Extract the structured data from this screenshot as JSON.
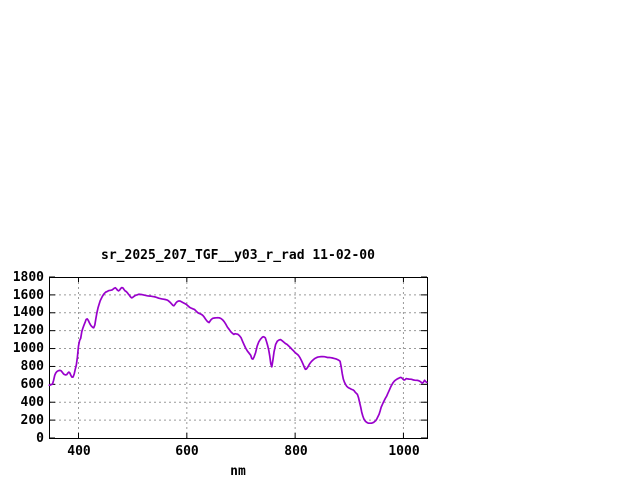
{
  "page": {
    "background": "#ffffff"
  },
  "chart_data": {
    "type": "line",
    "title": "sr_2025_207_TGF__y03_r_rad 11-02-00",
    "xlabel": "nm",
    "ylabel": "",
    "xlim": [
      345.5,
      1043.5
    ],
    "ylim": [
      0,
      1800
    ],
    "grid": true,
    "legend": "none",
    "line_color": "#9900cc",
    "grid_color": "#9a9a9a",
    "border_color": "#000000",
    "xticks": [
      400,
      600,
      800,
      1000
    ],
    "xtick_labels": [
      "400",
      "600",
      "800",
      "1000"
    ],
    "yticks": [
      0,
      200,
      400,
      600,
      800,
      1000,
      1200,
      1400,
      1600,
      1800
    ],
    "ytick_labels": [
      "0",
      "200",
      "400",
      "600",
      "800",
      "1000",
      "1200",
      "1400",
      "1600",
      "1800"
    ],
    "points": [
      [
        346,
        590
      ],
      [
        348,
        592
      ],
      [
        350,
        598
      ],
      [
        352,
        602
      ],
      [
        354,
        645
      ],
      [
        356,
        700
      ],
      [
        358,
        728
      ],
      [
        360,
        742
      ],
      [
        362,
        750
      ],
      [
        364,
        755
      ],
      [
        366,
        756
      ],
      [
        368,
        750
      ],
      [
        370,
        735
      ],
      [
        372,
        718
      ],
      [
        374,
        710
      ],
      [
        376,
        705
      ],
      [
        378,
        708
      ],
      [
        380,
        725
      ],
      [
        382,
        737
      ],
      [
        384,
        728
      ],
      [
        386,
        700
      ],
      [
        388,
        680
      ],
      [
        390,
        682
      ],
      [
        392,
        715
      ],
      [
        394,
        770
      ],
      [
        396,
        815
      ],
      [
        398,
        905
      ],
      [
        400,
        1030
      ],
      [
        402,
        1090
      ],
      [
        404,
        1115
      ],
      [
        406,
        1190
      ],
      [
        408,
        1225
      ],
      [
        410,
        1260
      ],
      [
        412,
        1290
      ],
      [
        414,
        1325
      ],
      [
        416,
        1332
      ],
      [
        418,
        1315
      ],
      [
        420,
        1290
      ],
      [
        422,
        1267
      ],
      [
        424,
        1250
      ],
      [
        426,
        1238
      ],
      [
        428,
        1232
      ],
      [
        430,
        1262
      ],
      [
        432,
        1330
      ],
      [
        434,
        1400
      ],
      [
        436,
        1455
      ],
      [
        438,
        1495
      ],
      [
        440,
        1535
      ],
      [
        442,
        1560
      ],
      [
        444,
        1582
      ],
      [
        446,
        1602
      ],
      [
        448,
        1618
      ],
      [
        450,
        1630
      ],
      [
        452,
        1636
      ],
      [
        454,
        1642
      ],
      [
        456,
        1648
      ],
      [
        458,
        1650
      ],
      [
        460,
        1652
      ],
      [
        462,
        1656
      ],
      [
        464,
        1665
      ],
      [
        466,
        1675
      ],
      [
        468,
        1680
      ],
      [
        470,
        1668
      ],
      [
        472,
        1652
      ],
      [
        474,
        1645
      ],
      [
        476,
        1655
      ],
      [
        478,
        1672
      ],
      [
        480,
        1682
      ],
      [
        482,
        1678
      ],
      [
        484,
        1660
      ],
      [
        486,
        1645
      ],
      [
        488,
        1638
      ],
      [
        490,
        1625
      ],
      [
        492,
        1610
      ],
      [
        494,
        1595
      ],
      [
        496,
        1578
      ],
      [
        498,
        1568
      ],
      [
        500,
        1572
      ],
      [
        502,
        1582
      ],
      [
        504,
        1590
      ],
      [
        506,
        1596
      ],
      [
        508,
        1600
      ],
      [
        510,
        1604
      ],
      [
        512,
        1608
      ],
      [
        514,
        1606
      ],
      [
        516,
        1604
      ],
      [
        518,
        1602
      ],
      [
        521,
        1598
      ],
      [
        524,
        1594
      ],
      [
        527,
        1590
      ],
      [
        530,
        1588
      ],
      [
        533,
        1586
      ],
      [
        536,
        1583
      ],
      [
        539,
        1580
      ],
      [
        542,
        1576
      ],
      [
        545,
        1570
      ],
      [
        548,
        1563
      ],
      [
        551,
        1558
      ],
      [
        554,
        1555
      ],
      [
        557,
        1552
      ],
      [
        560,
        1548
      ],
      [
        563,
        1544
      ],
      [
        566,
        1534
      ],
      [
        569,
        1518
      ],
      [
        572,
        1498
      ],
      [
        574,
        1485
      ],
      [
        576,
        1478
      ],
      [
        578,
        1492
      ],
      [
        580,
        1512
      ],
      [
        582,
        1524
      ],
      [
        584,
        1530
      ],
      [
        586,
        1533
      ],
      [
        588,
        1530
      ],
      [
        590,
        1524
      ],
      [
        593,
        1514
      ],
      [
        596,
        1504
      ],
      [
        599,
        1494
      ],
      [
        602,
        1478
      ],
      [
        605,
        1462
      ],
      [
        608,
        1452
      ],
      [
        611,
        1444
      ],
      [
        614,
        1438
      ],
      [
        617,
        1420
      ],
      [
        620,
        1402
      ],
      [
        623,
        1392
      ],
      [
        626,
        1385
      ],
      [
        629,
        1374
      ],
      [
        632,
        1352
      ],
      [
        635,
        1325
      ],
      [
        638,
        1302
      ],
      [
        641,
        1290
      ],
      [
        643,
        1308
      ],
      [
        645,
        1325
      ],
      [
        648,
        1338
      ],
      [
        651,
        1342
      ],
      [
        654,
        1344
      ],
      [
        657,
        1345
      ],
      [
        660,
        1344
      ],
      [
        663,
        1336
      ],
      [
        666,
        1322
      ],
      [
        669,
        1300
      ],
      [
        672,
        1272
      ],
      [
        675,
        1240
      ],
      [
        678,
        1215
      ],
      [
        681,
        1190
      ],
      [
        684,
        1172
      ],
      [
        687,
        1158
      ],
      [
        689,
        1166
      ],
      [
        691,
        1164
      ],
      [
        694,
        1160
      ],
      [
        697,
        1145
      ],
      [
        700,
        1122
      ],
      [
        703,
        1080
      ],
      [
        706,
        1040
      ],
      [
        709,
        1000
      ],
      [
        712,
        970
      ],
      [
        715,
        948
      ],
      [
        718,
        925
      ],
      [
        720,
        888
      ],
      [
        722,
        882
      ],
      [
        724,
        905
      ],
      [
        727,
        955
      ],
      [
        730,
        1030
      ],
      [
        733,
        1075
      ],
      [
        736,
        1105
      ],
      [
        739,
        1125
      ],
      [
        741,
        1133
      ],
      [
        743,
        1128
      ],
      [
        745,
        1120
      ],
      [
        747,
        1082
      ],
      [
        749,
        1040
      ],
      [
        751,
        990
      ],
      [
        753,
        920
      ],
      [
        755,
        830
      ],
      [
        757,
        796
      ],
      [
        759,
        870
      ],
      [
        761,
        960
      ],
      [
        764,
        1045
      ],
      [
        767,
        1082
      ],
      [
        770,
        1095
      ],
      [
        773,
        1100
      ],
      [
        776,
        1088
      ],
      [
        779,
        1072
      ],
      [
        782,
        1056
      ],
      [
        785,
        1046
      ],
      [
        788,
        1030
      ],
      [
        791,
        1012
      ],
      [
        794,
        992
      ],
      [
        797,
        975
      ],
      [
        800,
        955
      ],
      [
        803,
        940
      ],
      [
        806,
        925
      ],
      [
        809,
        898
      ],
      [
        812,
        862
      ],
      [
        815,
        820
      ],
      [
        817,
        792
      ],
      [
        819,
        768
      ],
      [
        821,
        772
      ],
      [
        824,
        798
      ],
      [
        827,
        832
      ],
      [
        830,
        855
      ],
      [
        833,
        872
      ],
      [
        836,
        888
      ],
      [
        839,
        898
      ],
      [
        842,
        904
      ],
      [
        845,
        908
      ],
      [
        848,
        910
      ],
      [
        851,
        910
      ],
      [
        854,
        909
      ],
      [
        857,
        904
      ],
      [
        860,
        900
      ],
      [
        863,
        900
      ],
      [
        866,
        898
      ],
      [
        869,
        894
      ],
      [
        872,
        890
      ],
      [
        875,
        886
      ],
      [
        878,
        878
      ],
      [
        881,
        868
      ],
      [
        883,
        858
      ],
      [
        885,
        795
      ],
      [
        887,
        722
      ],
      [
        889,
        660
      ],
      [
        891,
        625
      ],
      [
        893,
        600
      ],
      [
        895,
        580
      ],
      [
        897,
        568
      ],
      [
        899,
        560
      ],
      [
        901,
        554
      ],
      [
        903,
        548
      ],
      [
        905,
        542
      ],
      [
        907,
        538
      ],
      [
        909,
        528
      ],
      [
        911,
        512
      ],
      [
        913,
        500
      ],
      [
        915,
        488
      ],
      [
        917,
        452
      ],
      [
        919,
        398
      ],
      [
        921,
        345
      ],
      [
        923,
        290
      ],
      [
        925,
        246
      ],
      [
        927,
        212
      ],
      [
        929,
        192
      ],
      [
        931,
        180
      ],
      [
        933,
        172
      ],
      [
        935,
        167
      ],
      [
        937,
        165
      ],
      [
        939,
        165
      ],
      [
        941,
        166
      ],
      [
        943,
        170
      ],
      [
        945,
        175
      ],
      [
        947,
        184
      ],
      [
        949,
        195
      ],
      [
        951,
        215
      ],
      [
        953,
        240
      ],
      [
        955,
        265
      ],
      [
        957,
        305
      ],
      [
        959,
        345
      ],
      [
        961,
        372
      ],
      [
        963,
        400
      ],
      [
        965,
        425
      ],
      [
        967,
        448
      ],
      [
        969,
        468
      ],
      [
        971,
        495
      ],
      [
        973,
        522
      ],
      [
        975,
        550
      ],
      [
        977,
        578
      ],
      [
        979,
        600
      ],
      [
        981,
        620
      ],
      [
        983,
        634
      ],
      [
        985,
        645
      ],
      [
        987,
        654
      ],
      [
        989,
        662
      ],
      [
        991,
        668
      ],
      [
        993,
        674
      ],
      [
        995,
        678
      ],
      [
        997,
        672
      ],
      [
        999,
        658
      ],
      [
        1001,
        648
      ],
      [
        1003,
        652
      ],
      [
        1005,
        664
      ],
      [
        1007,
        662
      ],
      [
        1009,
        660
      ],
      [
        1011,
        657
      ],
      [
        1013,
        657
      ],
      [
        1015,
        656
      ],
      [
        1017,
        652
      ],
      [
        1019,
        648
      ],
      [
        1021,
        646
      ],
      [
        1023,
        645
      ],
      [
        1025,
        645
      ],
      [
        1027,
        643
      ],
      [
        1029,
        638
      ],
      [
        1031,
        632
      ],
      [
        1033,
        622
      ],
      [
        1035,
        614
      ],
      [
        1037,
        625
      ],
      [
        1039,
        645
      ],
      [
        1041,
        632
      ],
      [
        1043,
        622
      ]
    ]
  }
}
